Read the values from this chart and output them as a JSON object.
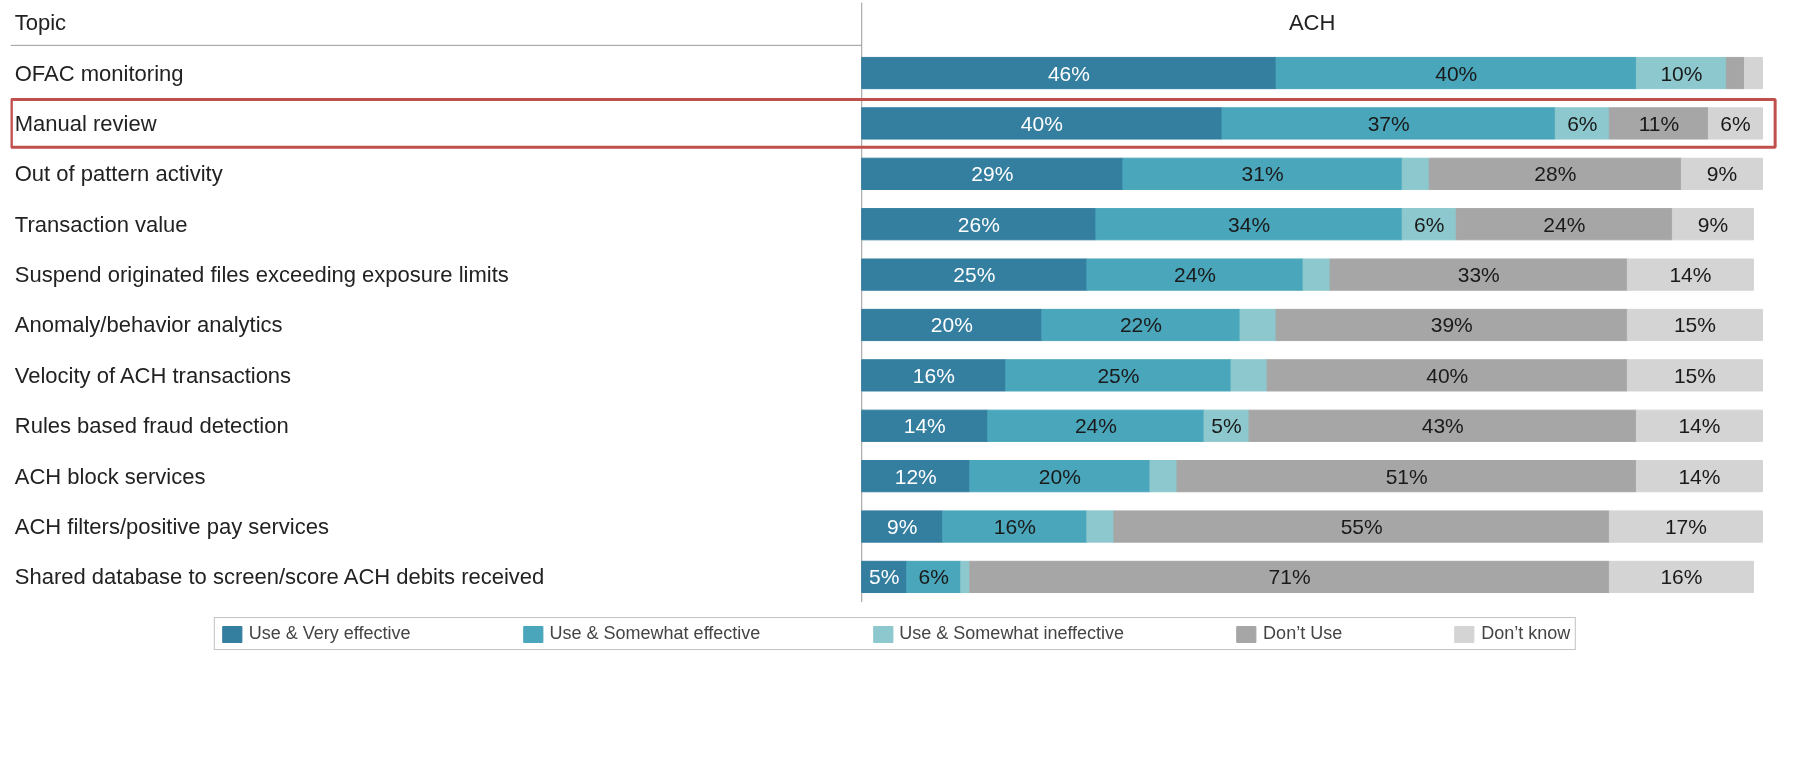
{
  "chart_data": {
    "type": "bar",
    "orientation": "horizontal",
    "stacked": true,
    "title": "ACH",
    "ylabel": "Topic",
    "categories": [
      "OFAC monitoring",
      "Manual review",
      "Out of pattern activity",
      "Transaction value",
      "Suspend originated files exceeding exposure limits",
      "Anomaly/behavior analytics",
      "Velocity of ACH transactions",
      "Rules based fraud detection",
      "ACH block services",
      "ACH filters/positive pay services",
      "Shared database to screen/score ACH debits received"
    ],
    "series": [
      {
        "name": "Use & Very effective",
        "color": "#347ea0",
        "values": [
          46,
          40,
          29,
          26,
          25,
          20,
          16,
          14,
          12,
          9,
          5
        ],
        "value_labels": [
          "46%",
          "40%",
          "29%",
          "26%",
          "25%",
          "20%",
          "16%",
          "14%",
          "12%",
          "9%",
          "5%"
        ]
      },
      {
        "name": "Use & Somewhat effective",
        "color": "#4aa6bb",
        "values": [
          40,
          37,
          31,
          34,
          24,
          22,
          25,
          24,
          20,
          16,
          6
        ],
        "value_labels": [
          "40%",
          "37%",
          "31%",
          "34%",
          "24%",
          "22%",
          "25%",
          "24%",
          "20%",
          "16%",
          "6%"
        ]
      },
      {
        "name": "Use & Somewhat ineffective",
        "color": "#8cc8cd",
        "values": [
          10,
          6,
          3,
          6,
          3,
          4,
          4,
          5,
          3,
          3,
          1
        ],
        "value_labels": [
          "10%",
          "6%",
          null,
          "6%",
          null,
          null,
          null,
          "5%",
          null,
          null,
          null
        ]
      },
      {
        "name": "Don’t Use",
        "color": "#a6a6a6",
        "values": [
          2,
          11,
          28,
          24,
          33,
          39,
          40,
          43,
          51,
          55,
          71
        ],
        "value_labels": [
          null,
          "11%",
          "28%",
          "24%",
          "33%",
          "39%",
          "40%",
          "43%",
          "51%",
          "55%",
          "71%"
        ]
      },
      {
        "name": "Don’t know",
        "color": "#d4d4d4",
        "values": [
          2,
          6,
          9,
          9,
          14,
          15,
          15,
          14,
          14,
          17,
          16
        ],
        "value_labels": [
          null,
          "6%",
          "9%",
          "9%",
          "14%",
          "15%",
          "15%",
          "14%",
          "14%",
          "17%",
          "16%"
        ]
      }
    ],
    "grid": false,
    "legend": "bottom"
  }
}
